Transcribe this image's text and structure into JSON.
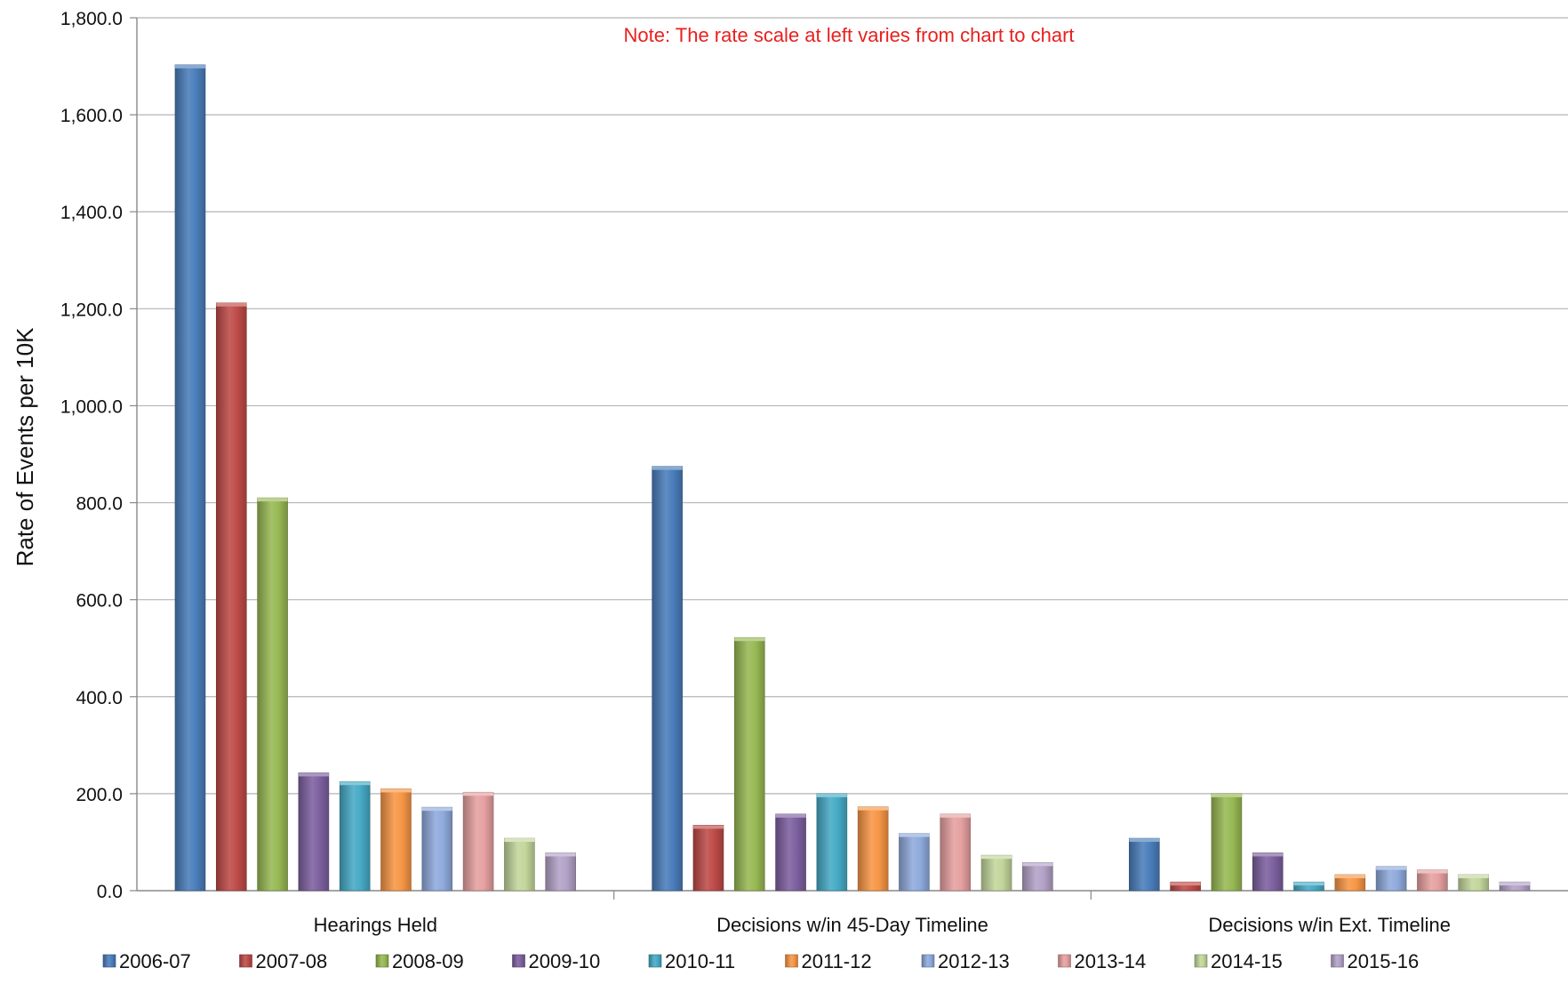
{
  "chart_data": {
    "type": "bar",
    "title": "",
    "note": "Note:  The rate scale at left varies from chart to chart",
    "xlabel": "",
    "ylabel": "Rate of Events per 10K",
    "ylim": [
      0,
      1800
    ],
    "yticks": [
      "0.0",
      "200.0",
      "400.0",
      "600.0",
      "800.0",
      "1,000.0",
      "1,200.0",
      "1,400.0",
      "1,600.0",
      "1,800.0"
    ],
    "grid": true,
    "legend_position": "bottom",
    "categories": [
      "Hearings Held",
      "Decisions w/in 45-Day Timeline",
      "Decisions w/in Ext. Timeline"
    ],
    "series": [
      {
        "name": "2006-07",
        "color": "#4a7ebb",
        "values": [
          1703,
          875,
          108
        ]
      },
      {
        "name": "2007-08",
        "color": "#be4b48",
        "values": [
          1212,
          135,
          18
        ]
      },
      {
        "name": "2008-09",
        "color": "#98b954",
        "values": [
          810,
          522,
          200
        ]
      },
      {
        "name": "2009-10",
        "color": "#7d60a0",
        "values": [
          243,
          158,
          78
        ]
      },
      {
        "name": "2010-11",
        "color": "#46aac5",
        "values": [
          225,
          200,
          18
        ]
      },
      {
        "name": "2011-12",
        "color": "#f79646",
        "values": [
          210,
          173,
          33
        ]
      },
      {
        "name": "2012-13",
        "color": "#8faadc",
        "values": [
          172,
          118,
          50
        ]
      },
      {
        "name": "2013-14",
        "color": "#e6a0a0",
        "values": [
          203,
          158,
          43
        ]
      },
      {
        "name": "2014-15",
        "color": "#c3d69b",
        "values": [
          108,
          73,
          33
        ]
      },
      {
        "name": "2015-16",
        "color": "#b3a2c7",
        "values": [
          78,
          58,
          18
        ]
      }
    ],
    "note_color": "#e8201e"
  }
}
